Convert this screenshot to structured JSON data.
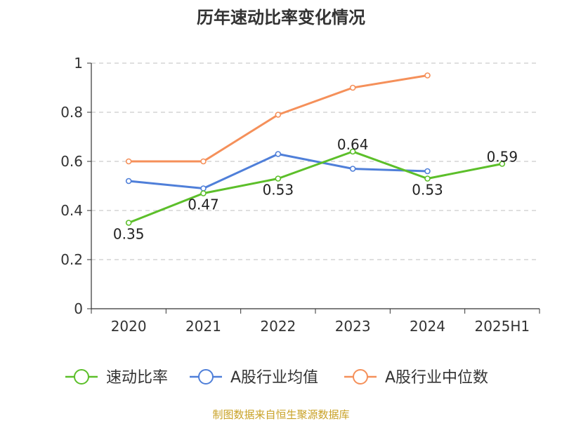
{
  "chart_data": {
    "type": "line",
    "title": "历年速动比率变化情况",
    "categories": [
      "2020",
      "2021",
      "2022",
      "2023",
      "2024",
      "2025H1"
    ],
    "ylim": [
      0,
      1
    ],
    "yticks": [
      "0",
      "0.2",
      "0.4",
      "0.6",
      "0.8",
      "1"
    ],
    "grid": true,
    "legend_position": "bottom",
    "series": [
      {
        "name": "速动比率",
        "color": "#5cbf2a",
        "values": [
          0.35,
          0.47,
          0.53,
          0.64,
          0.53,
          0.59
        ],
        "labels": [
          "0.35",
          "0.47",
          "0.53",
          "0.64",
          "0.53",
          "0.59"
        ]
      },
      {
        "name": "A股行业均值",
        "color": "#4f7fd9",
        "values": [
          0.52,
          0.49,
          0.63,
          0.57,
          0.56,
          null
        ]
      },
      {
        "name": "A股行业中位数",
        "color": "#f5905a",
        "values": [
          0.6,
          0.6,
          0.79,
          0.9,
          0.95,
          null
        ]
      }
    ],
    "source": "制图数据来自恒生聚源数据库"
  }
}
